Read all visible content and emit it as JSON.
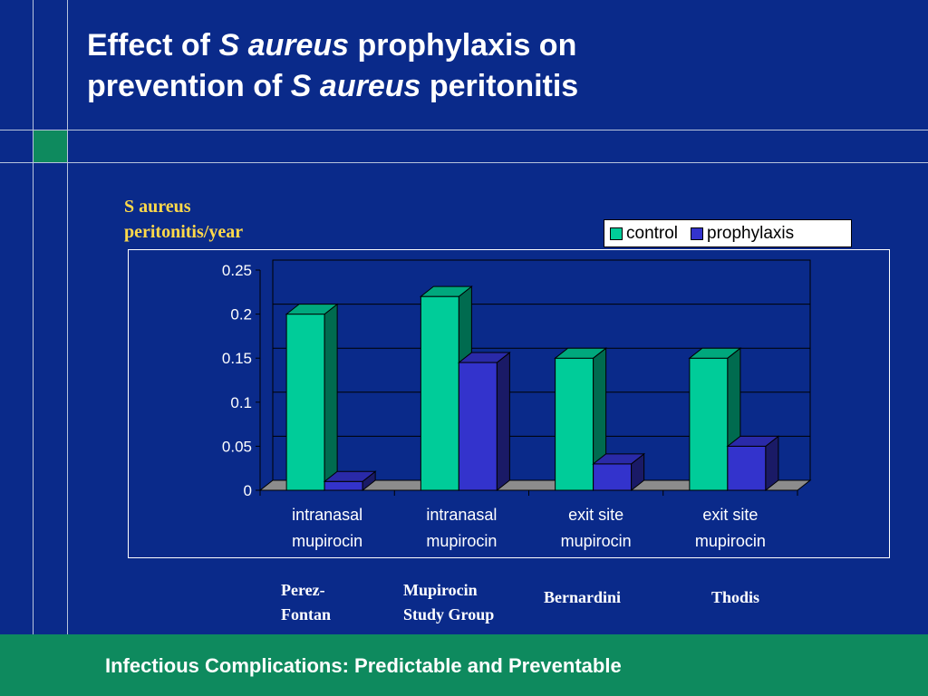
{
  "slide": {
    "title_part1": "Effect of ",
    "title_italic1": "S aureus",
    "title_part2": " prophylaxis on",
    "title_part3": "prevention of ",
    "title_italic2": "S aureus",
    "title_part4": " peritonitis",
    "footer": "Infectious Complications: Predictable and Preventable"
  },
  "studies": [
    {
      "line1": "Perez-",
      "line2": "Fontan"
    },
    {
      "line1": "Mupirocin",
      "line2": "Study Group"
    },
    {
      "line1": "Bernardini",
      "line2": ""
    },
    {
      "line1": "Thodis",
      "line2": ""
    }
  ],
  "colors": {
    "background": "#0a2a8a",
    "accent_green": "#0e8a5e",
    "control": "#00cc99",
    "prophylaxis": "#3333cc",
    "ylabel": "#ffd94a"
  },
  "chart_data": {
    "type": "bar",
    "title": "",
    "ylabel": "S aureus peritonitis/year",
    "xlabel": "",
    "categories": [
      [
        "intranasal",
        "mupirocin"
      ],
      [
        "intranasal",
        "mupirocin"
      ],
      [
        "exit site",
        "mupirocin"
      ],
      [
        "exit site",
        "mupirocin"
      ]
    ],
    "series": [
      {
        "name": "control",
        "values": [
          0.2,
          0.22,
          0.15,
          0.15
        ]
      },
      {
        "name": "prophylaxis",
        "values": [
          0.01,
          0.145,
          0.03,
          0.05
        ]
      }
    ],
    "ylim": [
      0,
      0.25
    ],
    "yticks": [
      "0",
      "0.05",
      "0.1",
      "0.15",
      "0.2",
      "0.25"
    ],
    "grid": true,
    "legend": "top-right",
    "style": "3d"
  }
}
